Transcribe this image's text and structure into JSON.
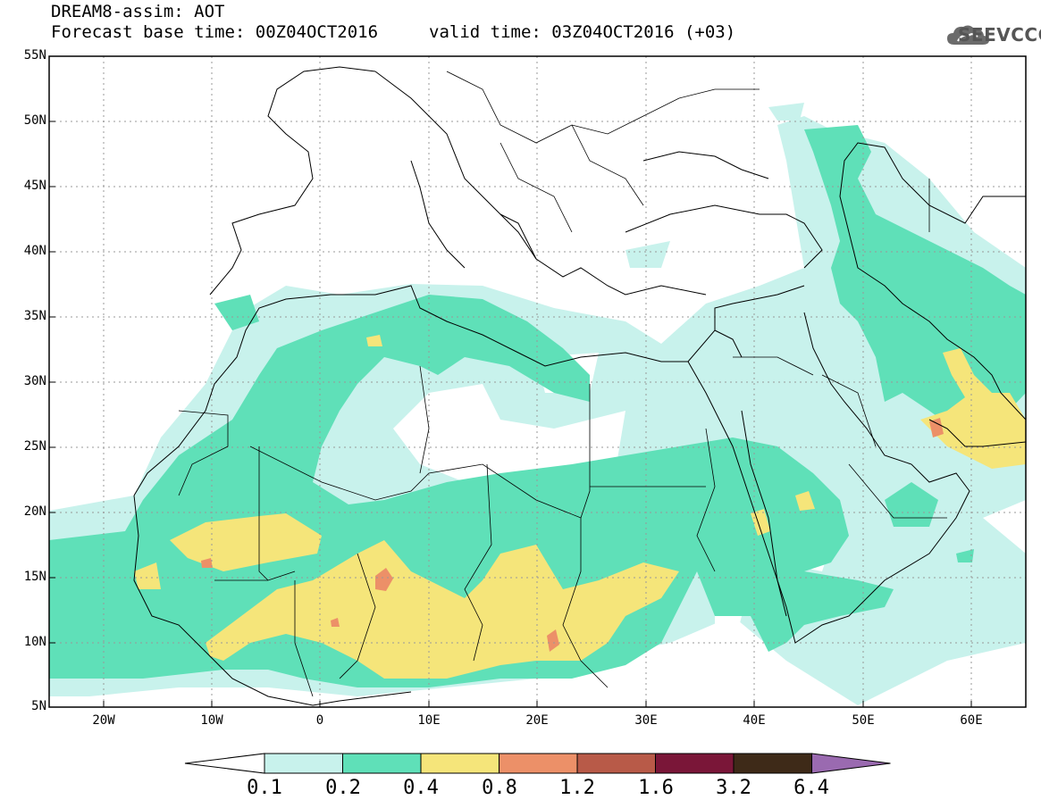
{
  "title": {
    "line1": "DREAM8-assim: AOT",
    "base_time": "Forecast base time: 00Z04OCT2016",
    "valid_time": "valid time: 03Z04OCT2016 (+03)"
  },
  "logo": {
    "text": "SEEVCCC",
    "icon": "cloud-icon"
  },
  "map": {
    "lat_labels": [
      "55N",
      "50N",
      "45N",
      "40N",
      "35N",
      "30N",
      "25N",
      "20N",
      "15N",
      "10N",
      "5N"
    ],
    "lon_labels": [
      "20W",
      "10W",
      "0",
      "10E",
      "20E",
      "30E",
      "40E",
      "50E",
      "60E"
    ],
    "lat_range": [
      5,
      55
    ],
    "lon_range": [
      -25,
      65
    ]
  },
  "colorbar": {
    "levels": [
      "0.1",
      "0.2",
      "0.4",
      "0.8",
      "1.2",
      "1.6",
      "3.2",
      "6.4"
    ],
    "colors": [
      "#c8f2ec",
      "#5fe0b8",
      "#f5e57a",
      "#ec9068",
      "#b85a48",
      "#7a1638",
      "#3e2a18",
      "#9a6ab0"
    ],
    "under_color": "#ffffff",
    "over_color": "#9a6ab0"
  },
  "palette": {
    "c01": "#c8f2ec",
    "c02": "#5fe0b8",
    "c04": "#f5e57a",
    "c08": "#ec9068"
  }
}
